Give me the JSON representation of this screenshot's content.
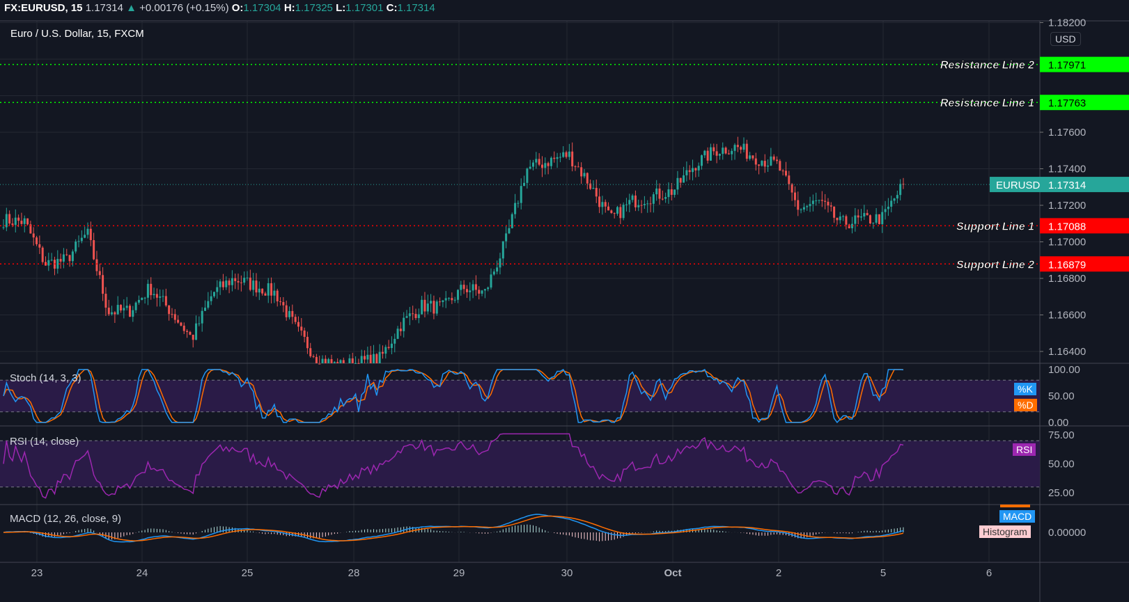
{
  "header": {
    "symbol": "FX:EURUSD, 15",
    "last": "1.17314",
    "change": "+0.00176 (+0.15%)",
    "o_label": "O:",
    "o": "1.17304",
    "h_label": "H:",
    "h": "1.17325",
    "l_label": "L:",
    "l": "1.17301",
    "c_label": "C:",
    "c": "1.17314"
  },
  "chart_title": "Euro / U.S. Dollar, 15, FXCM",
  "currency": "USD",
  "colors": {
    "up": "#26a69a",
    "down": "#ef5350",
    "resistance": "#00ff00",
    "support": "#ff0000",
    "stoch_k": "#2196f3",
    "stoch_d": "#ff6d00",
    "rsi": "#9c27b0",
    "band": "#2a1b47"
  },
  "chart_data": {
    "type": "candlestick",
    "price_ticks": [
      "1.18200",
      "1.17600",
      "1.17400",
      "1.17200",
      "1.17000",
      "1.16800",
      "1.16600",
      "1.16400"
    ],
    "ylim": [
      1.1625,
      1.1822
    ],
    "x_ticks": [
      "23",
      "24",
      "25",
      "28",
      "29",
      "30",
      "Oct",
      "2",
      "5",
      "6"
    ],
    "approx_closes": [
      1.1712,
      1.1711,
      1.1688,
      1.169,
      1.1705,
      1.1662,
      1.1662,
      1.1675,
      1.1662,
      1.1647,
      1.1672,
      1.168,
      1.1676,
      1.1672,
      1.1652,
      1.1636,
      1.1632,
      1.1634,
      1.1636,
      1.1655,
      1.1665,
      1.1664,
      1.1675,
      1.1672,
      1.17,
      1.174,
      1.1744,
      1.1748,
      1.1732,
      1.1712,
      1.1722,
      1.1725,
      1.1728,
      1.1742,
      1.175,
      1.1752,
      1.1746,
      1.1742,
      1.1718,
      1.1722,
      1.171,
      1.1712,
      1.1713,
      1.17314
    ],
    "current": {
      "label": "EURUSD",
      "value": "1.17314",
      "price": 1.17314
    },
    "levels": [
      {
        "name": "Resistance Line 2",
        "value": "1.17971",
        "price": 1.17971,
        "kind": "resistance"
      },
      {
        "name": "Resistance Line 1",
        "value": "1.17763",
        "price": 1.17763,
        "kind": "resistance"
      },
      {
        "name": "Support Line 1",
        "value": "1.17088",
        "price": 1.17088,
        "kind": "support"
      },
      {
        "name": "Support Line 2",
        "value": "1.16879",
        "price": 1.16879,
        "kind": "support"
      }
    ],
    "stoch": {
      "title": "Stoch (14, 3, 3)",
      "k_label": "%K",
      "d_label": "%D",
      "ticks": [
        "100.00",
        "50.00",
        "0.00"
      ],
      "bands": [
        20,
        80
      ]
    },
    "rsi": {
      "title": "RSI (14, close)",
      "label": "RSI",
      "ticks": [
        "75.00",
        "50.00",
        "25.00"
      ],
      "bands": [
        30,
        70
      ]
    },
    "macd": {
      "title": "MACD (12, 26, close, 9)",
      "macd_label": "MACD",
      "hist_label": "Histogram",
      "ticks": [
        "0.00000"
      ]
    }
  }
}
